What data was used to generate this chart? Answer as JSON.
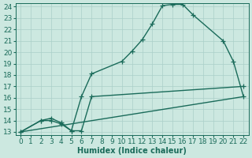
{
  "xlabel": "Humidex (Indice chaleur)",
  "bg_color": "#cce8e0",
  "plot_bg_color": "#cce8e0",
  "grid_color": "#aacfc8",
  "line_color": "#1a6b5a",
  "ylim": [
    13,
    24
  ],
  "xlim": [
    0,
    22
  ],
  "yticks": [
    13,
    14,
    15,
    16,
    17,
    18,
    19,
    20,
    21,
    22,
    23,
    24
  ],
  "xticks": [
    0,
    1,
    2,
    3,
    4,
    5,
    6,
    7,
    8,
    9,
    10,
    11,
    12,
    13,
    14,
    15,
    16,
    17,
    18,
    19,
    20,
    21,
    22
  ],
  "line1_x": [
    0,
    2,
    3,
    4,
    5,
    6,
    7,
    10,
    11,
    12,
    13,
    14,
    15,
    16,
    17,
    20,
    21,
    22
  ],
  "line1_y": [
    13,
    14,
    14,
    13.7,
    13.1,
    16.1,
    18.1,
    19.2,
    20.1,
    21.1,
    22.5,
    24.1,
    24.2,
    24.2,
    23.3,
    21.0,
    19.2,
    16.1
  ],
  "line2_x": [
    0,
    2,
    3,
    4,
    5,
    6,
    7,
    22
  ],
  "line2_y": [
    13,
    14,
    14.2,
    13.8,
    13.1,
    13.1,
    16.1,
    17.0
  ],
  "line3_x": [
    0,
    22
  ],
  "line3_y": [
    13,
    16.1
  ],
  "marker": "+",
  "markersize": 4,
  "linewidth": 1.0,
  "label_fontsize": 7,
  "tick_fontsize": 6.5
}
